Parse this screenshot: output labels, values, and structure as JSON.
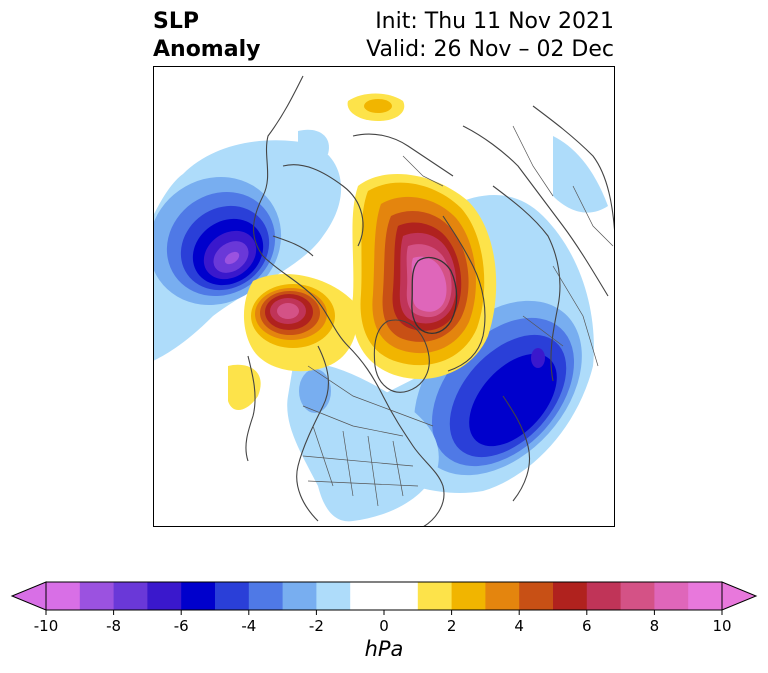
{
  "header": {
    "variable": "SLP",
    "type": "Anomaly",
    "init": "Init: Thu 11 Nov 2021",
    "valid": "Valid: 26 Nov – 02 Dec"
  },
  "map": {
    "projection": "north-polar-stereographic",
    "field": "sea level pressure anomaly",
    "features": [
      "coastlines",
      "country borders",
      "US state borders"
    ]
  },
  "colorbar": {
    "unit": "hPa",
    "levels": [
      -10,
      -9,
      -8,
      -7,
      -6,
      -5,
      -4,
      -3,
      -2,
      -1,
      1,
      2,
      3,
      4,
      5,
      6,
      7,
      8,
      9,
      10
    ],
    "tick_labels": [
      "-10",
      "-8",
      "-6",
      "-4",
      "-2",
      "0",
      "2",
      "4",
      "6",
      "8",
      "10"
    ],
    "colors": [
      "#d86fe6",
      "#9b52e0",
      "#6a38d8",
      "#3a18cc",
      "#0000cc",
      "#2a3fd8",
      "#4f79e6",
      "#78aef0",
      "#aedcfa",
      "#ffffff",
      "#ffffff",
      "#fde34a",
      "#f1b500",
      "#e4850e",
      "#c85015",
      "#b0221e",
      "#c03458",
      "#d45286",
      "#df66ba",
      "#e878dc"
    ],
    "extend": "both"
  }
}
